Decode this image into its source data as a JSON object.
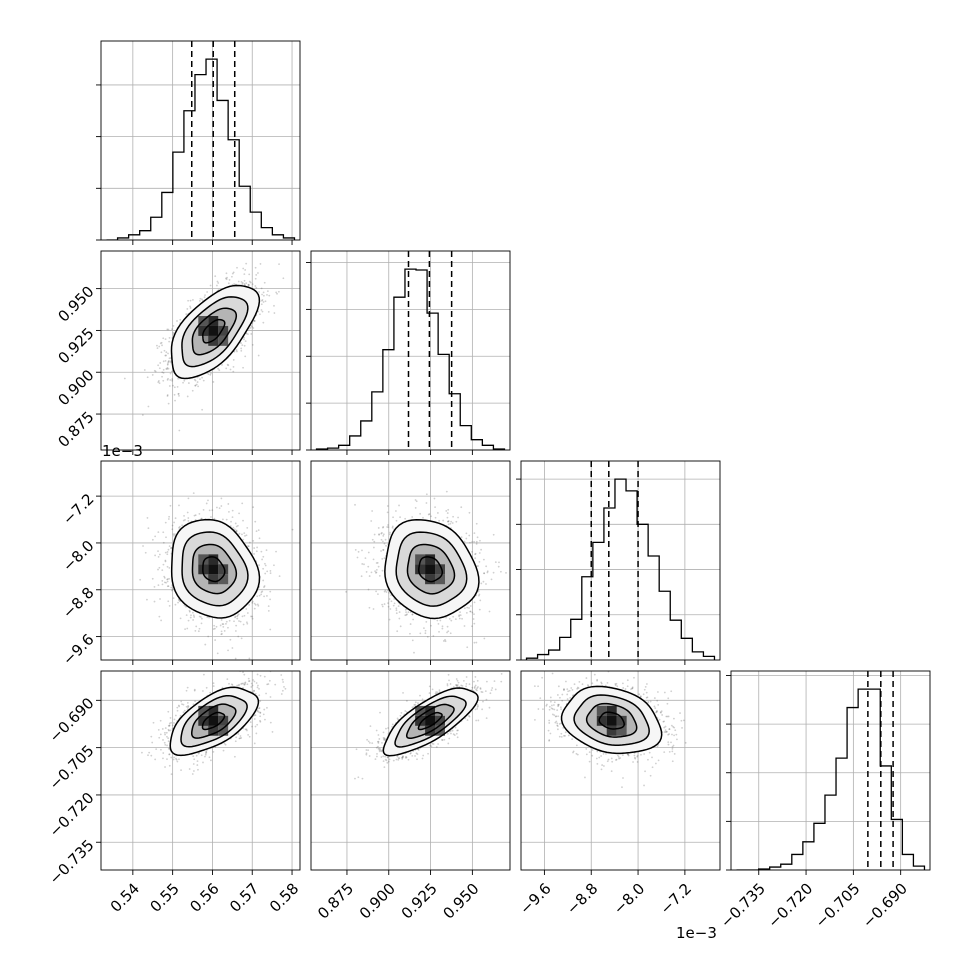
{
  "chart_data": {
    "type": "corner",
    "n_params": 4,
    "grid": true,
    "offset_labels": [
      {
        "axis": "param2-vertical",
        "text": "1e−3"
      },
      {
        "axis": "param2-horizontal",
        "text": "1e−3"
      }
    ],
    "params": [
      {
        "range": [
          0.532,
          0.582
        ],
        "ticks": [
          0.54,
          0.55,
          0.56,
          0.57,
          0.58
        ],
        "tick_labels": [
          "0.54",
          "0.55",
          "0.56",
          "0.57",
          "0.58"
        ],
        "quantiles": [
          0.5548,
          0.5602,
          0.5656
        ]
      },
      {
        "range": [
          0.8535,
          0.9725
        ],
        "ticks": [
          0.875,
          0.9,
          0.925,
          0.95
        ],
        "tick_labels": [
          "0.875",
          "0.900",
          "0.925",
          "0.950"
        ],
        "quantiles": [
          0.9118,
          0.9243,
          0.9376
        ]
      },
      {
        "range": [
          -10.0,
          -6.6
        ],
        "ticks": [
          -9.6,
          -8.8,
          -8.0,
          -7.2
        ],
        "tick_labels": [
          "−9.6",
          "−8.8",
          "−8.0",
          "−7.2"
        ],
        "quantiles": [
          -8.8,
          -8.5,
          -8.0
        ]
      },
      {
        "range": [
          -0.7438,
          -0.6807
        ],
        "ticks": [
          -0.735,
          -0.72,
          -0.705,
          -0.69
        ],
        "tick_labels": [
          "−0.735",
          "−0.720",
          "−0.705",
          "−0.690"
        ],
        "quantiles": [
          -0.7004,
          -0.6963,
          -0.6924
        ]
      }
    ],
    "histograms": [
      {
        "param": 0,
        "counts": [
          0,
          2,
          5,
          9,
          22,
          46,
          85,
          125,
          160,
          175,
          135,
          97,
          52,
          27,
          12,
          5,
          2
        ]
      },
      {
        "param": 1,
        "counts": [
          1,
          2,
          5,
          15,
          31,
          62,
          107,
          163,
          193,
          192,
          146,
          102,
          60,
          26,
          11,
          5,
          1
        ]
      },
      {
        "param": 2,
        "counts": [
          2,
          6,
          11,
          25,
          45,
          92,
          130,
          168,
          200,
          187,
          150,
          115,
          76,
          44,
          24,
          9,
          4
        ]
      },
      {
        "param": 3,
        "counts": [
          0,
          0,
          1,
          3,
          6,
          16,
          29,
          48,
          77,
          115,
          167,
          186,
          186,
          107,
          52,
          16,
          4
        ]
      }
    ],
    "pairs": [
      {
        "row": 1,
        "col": 0,
        "mean": [
          0.5602,
          0.9247
        ],
        "sd": [
          0.0055,
          0.0139
        ],
        "rho": 0.6
      },
      {
        "row": 2,
        "col": 0,
        "mean": [
          0.5602,
          -8.45
        ],
        "sd": [
          0.0055,
          0.42
        ],
        "rho": -0.15
      },
      {
        "row": 2,
        "col": 1,
        "mean": [
          0.9247,
          -8.45
        ],
        "sd": [
          0.0139,
          0.42
        ],
        "rho": -0.15
      },
      {
        "row": 3,
        "col": 0,
        "mean": [
          0.5602,
          -0.6965
        ],
        "sd": [
          0.0055,
          0.0053
        ],
        "rho": 0.6
      },
      {
        "row": 3,
        "col": 1,
        "mean": [
          0.9247,
          -0.6965
        ],
        "sd": [
          0.0139,
          0.0053
        ],
        "rho": 0.75
      },
      {
        "row": 3,
        "col": 2,
        "mean": [
          -8.45,
          -0.6965
        ],
        "sd": [
          0.42,
          0.0053
        ],
        "rho": -0.22
      }
    ],
    "contour_sigma_levels": [
      0.5,
      1.0,
      1.5,
      2.0
    ]
  }
}
